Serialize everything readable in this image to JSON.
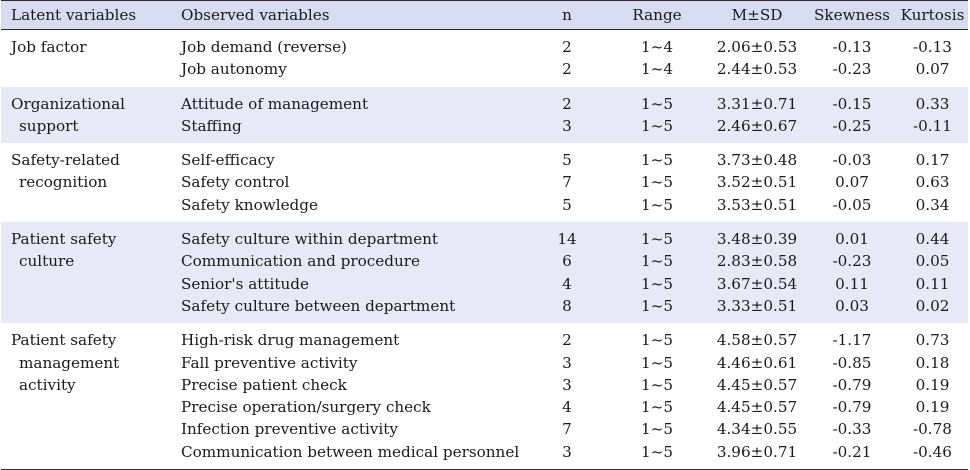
{
  "headers": {
    "latent": "Latent variables",
    "observed": "Observed variables",
    "n": "n",
    "range": "Range",
    "msd": "M±SD",
    "skewness": "Skewness",
    "kurtosis": "Kurtosis"
  },
  "groups": [
    {
      "latent_lines": [
        "Job factor"
      ],
      "observed": [
        "Job demand (reverse)",
        "Job autonomy"
      ],
      "n": [
        "2",
        "2"
      ],
      "range": [
        "1~4",
        "1~4"
      ],
      "msd": [
        "2.06±0.53",
        "2.44±0.53"
      ],
      "skewness": [
        "-0.13",
        "-0.23"
      ],
      "kurtosis": [
        "-0.13",
        "0.07"
      ]
    },
    {
      "latent_lines": [
        "Organizational",
        "support"
      ],
      "observed": [
        "Attitude of management",
        "Staffing"
      ],
      "n": [
        "2",
        "3"
      ],
      "range": [
        "1~5",
        "1~5"
      ],
      "msd": [
        "3.31±0.71",
        "2.46±0.67"
      ],
      "skewness": [
        "-0.15",
        "-0.25"
      ],
      "kurtosis": [
        "0.33",
        "-0.11"
      ]
    },
    {
      "latent_lines": [
        "Safety-related",
        "recognition"
      ],
      "observed": [
        "Self-efficacy",
        "Safety control",
        "Safety knowledge"
      ],
      "n": [
        "5",
        "7",
        "5"
      ],
      "range": [
        "1~5",
        "1~5",
        "1~5"
      ],
      "msd": [
        "3.73±0.48",
        "3.52±0.51",
        "3.53±0.51"
      ],
      "skewness": [
        "-0.03",
        "0.07",
        "-0.05"
      ],
      "kurtosis": [
        "0.17",
        "0.63",
        "0.34"
      ]
    },
    {
      "latent_lines": [
        "Patient safety",
        "culture"
      ],
      "observed": [
        "Safety culture within department",
        "Communication and procedure",
        "Senior's attitude",
        "Safety culture between department"
      ],
      "n": [
        "14",
        "6",
        "4",
        "8"
      ],
      "range": [
        "1~5",
        "1~5",
        "1~5",
        "1~5"
      ],
      "msd": [
        "3.48±0.39",
        "2.83±0.58",
        "3.67±0.54",
        "3.33±0.51"
      ],
      "skewness": [
        "0.01",
        "-0.23",
        "0.11",
        "0.03"
      ],
      "kurtosis": [
        "0.44",
        "0.05",
        "0.11",
        "0.02"
      ]
    },
    {
      "latent_lines": [
        "Patient safety",
        "management",
        "activity"
      ],
      "observed": [
        "High-risk drug management",
        "Fall preventive activity",
        "Precise patient check",
        "Precise operation/surgery check",
        "Infection preventive activity",
        "Communication between medical personnel"
      ],
      "n": [
        "2",
        "3",
        "3",
        "4",
        "7",
        "3"
      ],
      "range": [
        "1~5",
        "1~5",
        "1~5",
        "1~5",
        "1~5",
        "1~5"
      ],
      "msd": [
        "4.58±0.57",
        "4.46±0.61",
        "4.45±0.57",
        "4.45±0.57",
        "4.34±0.55",
        "3.96±0.71"
      ],
      "skewness": [
        "-1.17",
        "-0.85",
        "-0.79",
        "-0.79",
        "-0.33",
        "-0.21"
      ],
      "kurtosis": [
        "0.73",
        "0.18",
        "0.19",
        "0.19",
        "-0.78",
        "-0.46"
      ]
    }
  ]
}
